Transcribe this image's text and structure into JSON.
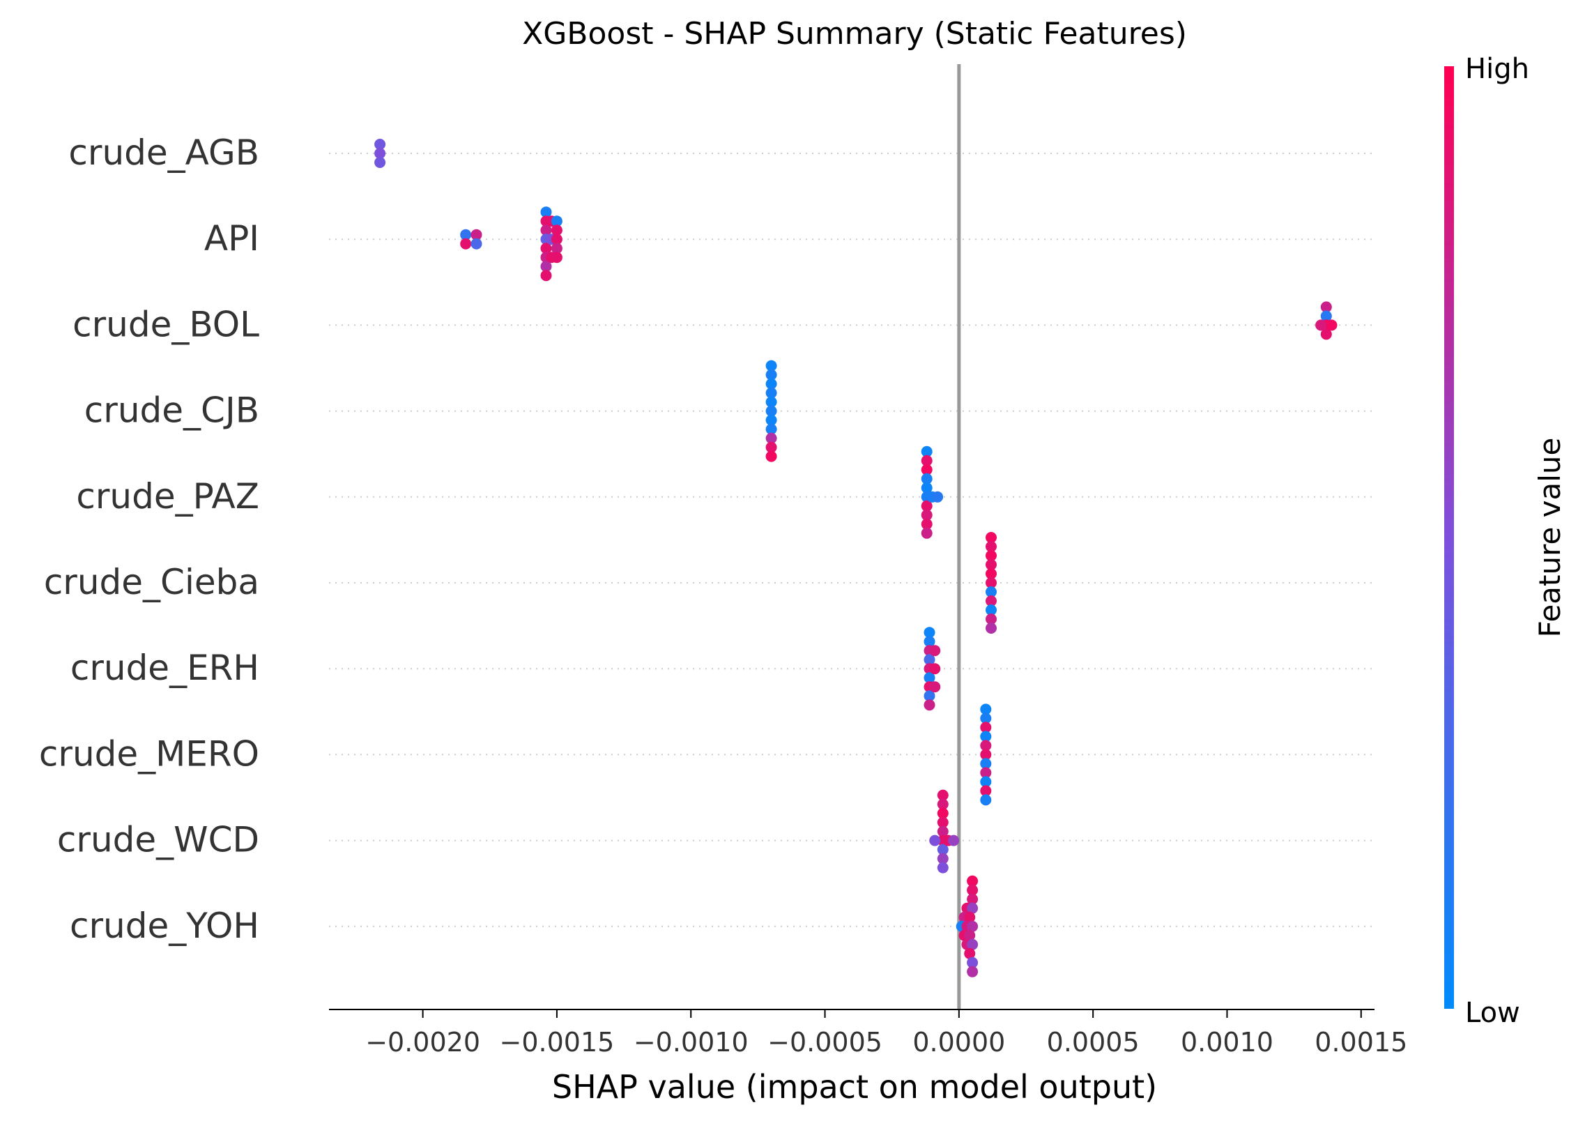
{
  "chart_data": {
    "type": "scatter",
    "title": "XGBoost - SHAP Summary (Static Features)",
    "xlabel": "SHAP value (impact on model output)",
    "xlim": [
      -0.00235,
      0.00155
    ],
    "xticks": [
      -0.002,
      -0.0015,
      -0.001,
      -0.0005,
      0.0,
      0.0005,
      0.001,
      0.0015
    ],
    "xtick_labels": [
      "−0.0020",
      "−0.0015",
      "−0.0010",
      "−0.0005",
      "0.0000",
      "0.0005",
      "0.0010",
      "0.0015"
    ],
    "zero_line": 0.0,
    "grid": "horizontal dotted per feature",
    "colorbar": {
      "label": "Feature value",
      "high_label": "High",
      "low_label": "Low",
      "low_color": "#008bfb",
      "mid_color": "#7d50dc",
      "high_color": "#ff0052"
    },
    "features": [
      {
        "name": "crude_AGB",
        "points": [
          {
            "shap": -0.00216,
            "value": 0.45,
            "lane": -1
          },
          {
            "shap": -0.00216,
            "value": 0.5,
            "lane": 0
          },
          {
            "shap": -0.00216,
            "value": 0.45,
            "lane": 1
          }
        ]
      },
      {
        "name": "API",
        "points": [
          {
            "shap": -0.00184,
            "value": 0.2,
            "lane": -0.5
          },
          {
            "shap": -0.00184,
            "value": 0.9,
            "lane": 0.5
          },
          {
            "shap": -0.0018,
            "value": 0.8,
            "lane": -0.5
          },
          {
            "shap": -0.0018,
            "value": 0.3,
            "lane": 0.5
          },
          {
            "shap": -0.00154,
            "value": 0.1,
            "lane": -3
          },
          {
            "shap": -0.00154,
            "value": 0.9,
            "lane": -2
          },
          {
            "shap": -0.00154,
            "value": 0.8,
            "lane": -1
          },
          {
            "shap": -0.00154,
            "value": 0.4,
            "lane": 0
          },
          {
            "shap": -0.00154,
            "value": 0.9,
            "lane": 1
          },
          {
            "shap": -0.00154,
            "value": 0.8,
            "lane": 2
          },
          {
            "shap": -0.00154,
            "value": 0.7,
            "lane": 3
          },
          {
            "shap": -0.00154,
            "value": 0.9,
            "lane": 4
          },
          {
            "shap": -0.00152,
            "value": 0.9,
            "lane": -2
          },
          {
            "shap": -0.00152,
            "value": 0.5,
            "lane": 0
          },
          {
            "shap": -0.00152,
            "value": 0.9,
            "lane": 2
          },
          {
            "shap": -0.0015,
            "value": 0.1,
            "lane": -2
          },
          {
            "shap": -0.0015,
            "value": 0.9,
            "lane": -1
          },
          {
            "shap": -0.0015,
            "value": 0.9,
            "lane": 0
          },
          {
            "shap": -0.0015,
            "value": 0.8,
            "lane": 1
          },
          {
            "shap": -0.0015,
            "value": 0.9,
            "lane": 2
          }
        ]
      },
      {
        "name": "crude_BOL",
        "points": [
          {
            "shap": 0.00137,
            "value": 0.8,
            "lane": -2
          },
          {
            "shap": 0.00137,
            "value": 0.15,
            "lane": -1
          },
          {
            "shap": 0.00137,
            "value": 0.95,
            "lane": 0
          },
          {
            "shap": 0.00137,
            "value": 0.9,
            "lane": 1
          },
          {
            "shap": 0.00135,
            "value": 0.85,
            "lane": 0
          },
          {
            "shap": 0.00139,
            "value": 0.95,
            "lane": 0
          }
        ]
      },
      {
        "name": "crude_CJB",
        "points": [
          {
            "shap": -0.0007,
            "value": 0.05,
            "lane": -5
          },
          {
            "shap": -0.0007,
            "value": 0.1,
            "lane": -4
          },
          {
            "shap": -0.0007,
            "value": 0.05,
            "lane": -3
          },
          {
            "shap": -0.0007,
            "value": 0.1,
            "lane": -2
          },
          {
            "shap": -0.0007,
            "value": 0.05,
            "lane": -1
          },
          {
            "shap": -0.0007,
            "value": 0.1,
            "lane": 0
          },
          {
            "shap": -0.0007,
            "value": 0.05,
            "lane": 1
          },
          {
            "shap": -0.0007,
            "value": 0.1,
            "lane": 2
          },
          {
            "shap": -0.0007,
            "value": 0.7,
            "lane": 3
          },
          {
            "shap": -0.0007,
            "value": 0.9,
            "lane": 4
          },
          {
            "shap": -0.0007,
            "value": 0.95,
            "lane": 5
          }
        ]
      },
      {
        "name": "crude_PAZ",
        "points": [
          {
            "shap": -0.00012,
            "value": 0.05,
            "lane": -5
          },
          {
            "shap": -0.00012,
            "value": 0.9,
            "lane": -4
          },
          {
            "shap": -0.00012,
            "value": 0.95,
            "lane": -3
          },
          {
            "shap": -0.00012,
            "value": 0.1,
            "lane": -2
          },
          {
            "shap": -0.00012,
            "value": 0.05,
            "lane": -1
          },
          {
            "shap": -0.00012,
            "value": 0.1,
            "lane": 0
          },
          {
            "shap": -0.00012,
            "value": 0.9,
            "lane": 1
          },
          {
            "shap": -0.00012,
            "value": 0.85,
            "lane": 2
          },
          {
            "shap": -0.00012,
            "value": 0.9,
            "lane": 3
          },
          {
            "shap": -0.00012,
            "value": 0.8,
            "lane": 4
          },
          {
            "shap": -0.0001,
            "value": 0.1,
            "lane": 0
          },
          {
            "shap": -8e-05,
            "value": 0.15,
            "lane": 0
          }
        ]
      },
      {
        "name": "crude_Cieba",
        "points": [
          {
            "shap": 0.00012,
            "value": 0.95,
            "lane": -5
          },
          {
            "shap": 0.00012,
            "value": 0.9,
            "lane": -4
          },
          {
            "shap": 0.00012,
            "value": 0.95,
            "lane": -3
          },
          {
            "shap": 0.00012,
            "value": 0.9,
            "lane": -2
          },
          {
            "shap": 0.00012,
            "value": 0.95,
            "lane": -1
          },
          {
            "shap": 0.00012,
            "value": 0.9,
            "lane": 0
          },
          {
            "shap": 0.00012,
            "value": 0.1,
            "lane": 1
          },
          {
            "shap": 0.00012,
            "value": 0.85,
            "lane": 2
          },
          {
            "shap": 0.00012,
            "value": 0.05,
            "lane": 3
          },
          {
            "shap": 0.00012,
            "value": 0.8,
            "lane": 4
          },
          {
            "shap": 0.00012,
            "value": 0.7,
            "lane": 5
          }
        ]
      },
      {
        "name": "crude_ERH",
        "points": [
          {
            "shap": -0.00011,
            "value": 0.05,
            "lane": -4
          },
          {
            "shap": -0.00011,
            "value": 0.1,
            "lane": -3
          },
          {
            "shap": -0.00011,
            "value": 0.8,
            "lane": -2
          },
          {
            "shap": -0.00011,
            "value": 0.3,
            "lane": -1
          },
          {
            "shap": -0.00011,
            "value": 0.85,
            "lane": 0
          },
          {
            "shap": -0.00011,
            "value": 0.1,
            "lane": 1
          },
          {
            "shap": -0.00011,
            "value": 0.9,
            "lane": 2
          },
          {
            "shap": -0.00011,
            "value": 0.2,
            "lane": 3
          },
          {
            "shap": -0.00011,
            "value": 0.8,
            "lane": 4
          },
          {
            "shap": -9e-05,
            "value": 0.85,
            "lane": -2
          },
          {
            "shap": -9e-05,
            "value": 0.9,
            "lane": 0
          },
          {
            "shap": -9e-05,
            "value": 0.85,
            "lane": 2
          }
        ]
      },
      {
        "name": "crude_MERO",
        "points": [
          {
            "shap": 0.0001,
            "value": 0.05,
            "lane": -5
          },
          {
            "shap": 0.0001,
            "value": 0.1,
            "lane": -4
          },
          {
            "shap": 0.0001,
            "value": 0.9,
            "lane": -3
          },
          {
            "shap": 0.0001,
            "value": 0.05,
            "lane": -2
          },
          {
            "shap": 0.0001,
            "value": 0.85,
            "lane": -1
          },
          {
            "shap": 0.0001,
            "value": 0.9,
            "lane": 0
          },
          {
            "shap": 0.0001,
            "value": 0.1,
            "lane": 1
          },
          {
            "shap": 0.0001,
            "value": 0.8,
            "lane": 2
          },
          {
            "shap": 0.0001,
            "value": 0.05,
            "lane": 3
          },
          {
            "shap": 0.0001,
            "value": 0.9,
            "lane": 4
          },
          {
            "shap": 0.0001,
            "value": 0.1,
            "lane": 5
          }
        ]
      },
      {
        "name": "crude_WCD",
        "points": [
          {
            "shap": -6e-05,
            "value": 0.9,
            "lane": -5
          },
          {
            "shap": -6e-05,
            "value": 0.85,
            "lane": -4
          },
          {
            "shap": -6e-05,
            "value": 0.95,
            "lane": -3
          },
          {
            "shap": -6e-05,
            "value": 0.9,
            "lane": -2
          },
          {
            "shap": -6e-05,
            "value": 0.8,
            "lane": -1
          },
          {
            "shap": -6e-05,
            "value": 0.9,
            "lane": 0
          },
          {
            "shap": -6e-05,
            "value": 0.4,
            "lane": 1
          },
          {
            "shap": -6e-05,
            "value": 0.6,
            "lane": 2
          },
          {
            "shap": -6e-05,
            "value": 0.5,
            "lane": 3
          },
          {
            "shap": -9e-05,
            "value": 0.5,
            "lane": 0
          },
          {
            "shap": -4e-05,
            "value": 0.9,
            "lane": 0
          },
          {
            "shap": -2e-05,
            "value": 0.6,
            "lane": 0
          }
        ]
      },
      {
        "name": "crude_YOH",
        "points": [
          {
            "shap": 5e-05,
            "value": 0.95,
            "lane": -5
          },
          {
            "shap": 5e-05,
            "value": 0.9,
            "lane": -4
          },
          {
            "shap": 5e-05,
            "value": 0.85,
            "lane": -3
          },
          {
            "shap": 3e-05,
            "value": 0.9,
            "lane": -2
          },
          {
            "shap": 5e-05,
            "value": 0.6,
            "lane": -2
          },
          {
            "shap": 2e-05,
            "value": 0.8,
            "lane": -1
          },
          {
            "shap": 4e-05,
            "value": 0.9,
            "lane": -1
          },
          {
            "shap": 1e-05,
            "value": 0.1,
            "lane": 0
          },
          {
            "shap": 3e-05,
            "value": 0.85,
            "lane": 0
          },
          {
            "shap": 5e-05,
            "value": 0.7,
            "lane": 0
          },
          {
            "shap": 2e-05,
            "value": 0.9,
            "lane": 1
          },
          {
            "shap": 4e-05,
            "value": 0.8,
            "lane": 1
          },
          {
            "shap": 3e-05,
            "value": 0.85,
            "lane": 2
          },
          {
            "shap": 5e-05,
            "value": 0.6,
            "lane": 2
          },
          {
            "shap": 4e-05,
            "value": 0.9,
            "lane": 3
          },
          {
            "shap": 5e-05,
            "value": 0.5,
            "lane": 4
          },
          {
            "shap": 5e-05,
            "value": 0.7,
            "lane": 5
          }
        ]
      }
    ]
  }
}
